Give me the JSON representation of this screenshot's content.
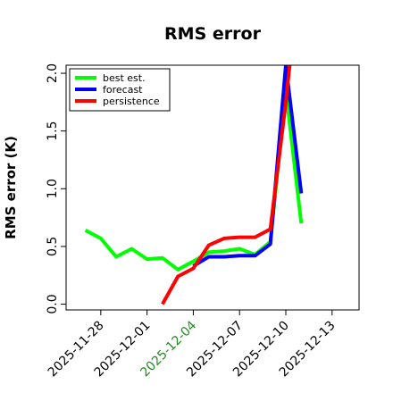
{
  "chart_data": {
    "type": "line",
    "title": "RMS error",
    "xlabel": "",
    "ylabel": "RMS error (K)",
    "ylim": [
      -0.05,
      2.07
    ],
    "xlim": [
      "2025-11-25T18:00",
      "2025-12-14T18:00"
    ],
    "grid": false,
    "legend_position": "top-left",
    "yticks": [
      {
        "value": 0.0,
        "label": "0.0"
      },
      {
        "value": 0.5,
        "label": "0.5"
      },
      {
        "value": 1.0,
        "label": "1.0"
      },
      {
        "value": 1.5,
        "label": "1.5"
      },
      {
        "value": 2.0,
        "label": "2.0"
      }
    ],
    "xticks": [
      {
        "date": "2025-11-28",
        "label": "2025-11-28",
        "color": "#000000"
      },
      {
        "date": "2025-12-01",
        "label": "2025-12-01",
        "color": "#000000"
      },
      {
        "date": "2025-12-04",
        "label": "2025-12-04",
        "color": "#228b22"
      },
      {
        "date": "2025-12-07",
        "label": "2025-12-07",
        "color": "#000000"
      },
      {
        "date": "2025-12-10",
        "label": "2025-12-10",
        "color": "#000000"
      },
      {
        "date": "2025-12-13",
        "label": "2025-12-13",
        "color": "#000000"
      }
    ],
    "series": [
      {
        "name": "best est.",
        "color": "#00ff00",
        "points": [
          {
            "x": "2025-11-27",
            "y": 0.64
          },
          {
            "x": "2025-11-28",
            "y": 0.57
          },
          {
            "x": "2025-11-29",
            "y": 0.41
          },
          {
            "x": "2025-11-30",
            "y": 0.48
          },
          {
            "x": "2025-12-01",
            "y": 0.39
          },
          {
            "x": "2025-12-02",
            "y": 0.4
          },
          {
            "x": "2025-12-03",
            "y": 0.3
          },
          {
            "x": "2025-12-04",
            "y": 0.37
          },
          {
            "x": "2025-12-05",
            "y": 0.45
          },
          {
            "x": "2025-12-06",
            "y": 0.46
          },
          {
            "x": "2025-12-07",
            "y": 0.48
          },
          {
            "x": "2025-12-08",
            "y": 0.43
          },
          {
            "x": "2025-12-09",
            "y": 0.54
          },
          {
            "x": "2025-12-10",
            "y": 1.85
          },
          {
            "x": "2025-12-11",
            "y": 0.7
          }
        ]
      },
      {
        "name": "forecast",
        "color": "#0000ff",
        "points": [
          {
            "x": "2025-12-04",
            "y": 0.33
          },
          {
            "x": "2025-12-05",
            "y": 0.41
          },
          {
            "x": "2025-12-06",
            "y": 0.41
          },
          {
            "x": "2025-12-07",
            "y": 0.42
          },
          {
            "x": "2025-12-08",
            "y": 0.42
          },
          {
            "x": "2025-12-09",
            "y": 0.52
          },
          {
            "x": "2025-12-10",
            "y": 2.07
          },
          {
            "x": "2025-12-11",
            "y": 0.96
          }
        ]
      },
      {
        "name": "persistence",
        "color": "#ff0000",
        "points": [
          {
            "x": "2025-12-02",
            "y": 0.0
          },
          {
            "x": "2025-12-03",
            "y": 0.24
          },
          {
            "x": "2025-12-04",
            "y": 0.31
          },
          {
            "x": "2025-12-05",
            "y": 0.51
          },
          {
            "x": "2025-12-06",
            "y": 0.57
          },
          {
            "x": "2025-12-07",
            "y": 0.58
          },
          {
            "x": "2025-12-08",
            "y": 0.58
          },
          {
            "x": "2025-12-09",
            "y": 0.65
          },
          {
            "x": "2025-12-10",
            "y": 1.75
          },
          {
            "x": "2025-12-10T06:00",
            "y": 2.07
          }
        ]
      }
    ]
  }
}
